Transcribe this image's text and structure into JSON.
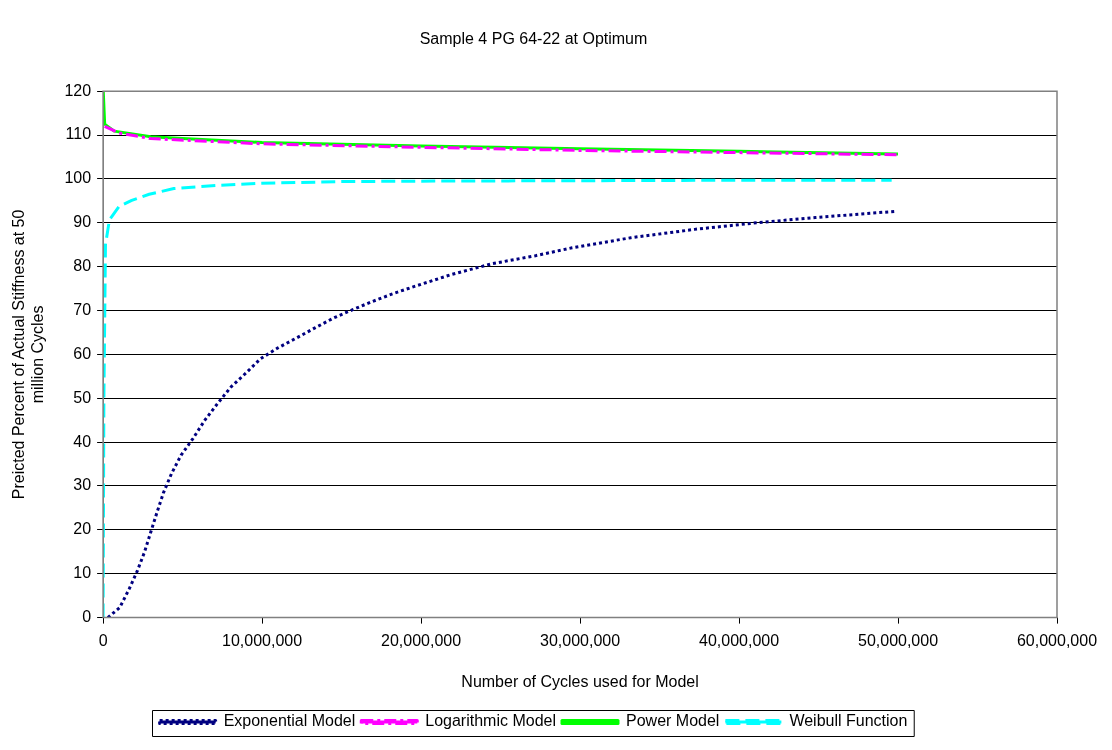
{
  "chart_data": {
    "type": "line",
    "title": "Sample 4 PG 64-22 at Optimum",
    "xlabel": "Number of Cycles used for Model",
    "ylabel": "Preicted Percent of Actual Stiffness at 50 million Cycles",
    "xlim": [
      0,
      60000000
    ],
    "xticks": [
      {
        "value": 0,
        "label": "0"
      },
      {
        "value": 10000000,
        "label": "10,000,000"
      },
      {
        "value": 20000000,
        "label": "20,000,000"
      },
      {
        "value": 30000000,
        "label": "30,000,000"
      },
      {
        "value": 40000000,
        "label": "40,000,000"
      },
      {
        "value": 50000000,
        "label": "50,000,000"
      },
      {
        "value": 60000000,
        "label": "60,000,000"
      }
    ],
    "ylim": [
      0,
      120
    ],
    "yticks": [
      0,
      10,
      20,
      30,
      40,
      50,
      60,
      70,
      80,
      90,
      100,
      110,
      120
    ],
    "grid": "y",
    "legend": "bottom",
    "marker": "none",
    "series": [
      {
        "name": "Exponential Model",
        "color": "#000080",
        "line_style": "dotted",
        "x": [
          300000,
          1050000,
          1650000,
          2160000,
          2600000,
          3000000,
          3400000,
          3800000,
          4300000,
          4900000,
          5650000,
          6400000,
          7200000,
          8050000,
          9000000,
          9900000,
          11000000,
          12200000,
          13300000,
          14500000,
          15700000,
          16900000,
          18200000,
          19500000,
          21900000,
          24500000,
          27200000,
          29500000,
          33200000,
          37200000,
          41100000,
          44800000,
          49800000
        ],
        "values": [
          0,
          2.3,
          6.6,
          10.7,
          14.9,
          19.5,
          24.1,
          28.5,
          32.8,
          37,
          40.8,
          45,
          48.8,
          52.6,
          55.8,
          59,
          61.5,
          63.8,
          66,
          68.3,
          70.2,
          72,
          73.8,
          75.4,
          78.2,
          80.7,
          82.5,
          84.3,
          86.6,
          88.5,
          90,
          91.2,
          92.6
        ]
      },
      {
        "name": "Logarithmic Model",
        "color": "#ff00ff",
        "line_style": "dashdot",
        "x": [
          100000,
          1000000,
          3000000,
          10000000,
          20000000,
          30000000,
          40000000,
          50000000
        ],
        "values": [
          112,
          110.5,
          109.2,
          108,
          107.2,
          106.5,
          106,
          105.5
        ]
      },
      {
        "name": "Power Model",
        "color": "#00ff00",
        "line_style": "solid",
        "x": [
          10000,
          100000,
          700000,
          3000000,
          5000000,
          10000000,
          20000000,
          30000000,
          40000000,
          50000000
        ],
        "values": [
          120,
          112.5,
          110.9,
          109.6,
          109.2,
          108.3,
          107.5,
          106.9,
          106.3,
          105.7
        ]
      },
      {
        "name": "Weibull Function",
        "color": "#00ffff",
        "line_style": "dashed",
        "x": [
          0,
          50000,
          150000,
          400000,
          1000000,
          1800000,
          2900000,
          4450000,
          7100000,
          9900000,
          15000000,
          20000000,
          30000000,
          40000000,
          49600000
        ],
        "values": [
          0,
          50,
          85,
          90.7,
          93.7,
          95.1,
          96.5,
          97.8,
          98.5,
          99,
          99.4,
          99.5,
          99.6,
          99.7,
          99.7
        ]
      }
    ]
  }
}
